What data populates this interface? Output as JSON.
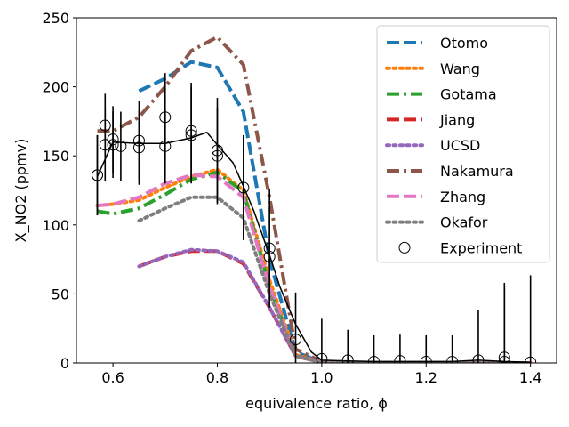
{
  "chart_data": {
    "type": "line",
    "title": "",
    "xlabel": "equivalence ratio, ϕ",
    "ylabel": "X_NO2 (ppmv)",
    "xlim": [
      0.53,
      1.45
    ],
    "ylim": [
      0,
      250
    ],
    "xticks": [
      0.6,
      0.8,
      1.0,
      1.2,
      1.4
    ],
    "xtick_labels": [
      "0.6",
      "0.8",
      "1.0",
      "1.2",
      "1.4"
    ],
    "yticks": [
      0,
      50,
      100,
      150,
      200,
      250
    ],
    "ytick_labels": [
      "0",
      "50",
      "100",
      "150",
      "200",
      "250"
    ],
    "grid": false,
    "legend_position": "top-right",
    "series": [
      {
        "name": "Otomo",
        "color": "#1f77b4",
        "dash": "dashed",
        "x": [
          0.65,
          0.7,
          0.75,
          0.8,
          0.85,
          0.9,
          0.95,
          1.0,
          1.05,
          1.1,
          1.15,
          1.2,
          1.25,
          1.3,
          1.35,
          1.4
        ],
        "y": [
          197,
          206,
          218,
          214,
          182,
          75,
          8,
          0.5,
          0.1,
          0,
          0,
          0,
          0,
          0,
          0,
          0
        ]
      },
      {
        "name": "Wang",
        "color": "#ff7f0e",
        "dash": "dotted",
        "x": [
          0.57,
          0.6,
          0.65,
          0.7,
          0.75,
          0.8,
          0.85,
          0.9,
          0.95,
          1.0,
          1.05,
          1.1,
          1.15,
          1.2,
          1.25,
          1.3,
          1.35,
          1.4
        ],
        "y": [
          114,
          115,
          118,
          127,
          135,
          140,
          125,
          60,
          6,
          0.5,
          0.1,
          0,
          0,
          0,
          0,
          0,
          0,
          0
        ]
      },
      {
        "name": "Gotama",
        "color": "#2ca02c",
        "dash": "dashdot",
        "x": [
          0.57,
          0.6,
          0.65,
          0.7,
          0.75,
          0.8,
          0.85,
          0.9,
          0.95,
          1.0,
          1.05,
          1.1,
          1.15,
          1.2,
          1.25,
          1.3,
          1.35,
          1.4
        ],
        "y": [
          110,
          108,
          112,
          122,
          133,
          138,
          124,
          55,
          5,
          0.5,
          0.1,
          0,
          0,
          0,
          0,
          0,
          0,
          0
        ]
      },
      {
        "name": "Jiang",
        "color": "#d62728",
        "dash": "dashed",
        "x": [
          0.65,
          0.7,
          0.75,
          0.8,
          0.85,
          0.9,
          0.95,
          1.0,
          1.05,
          1.1,
          1.15,
          1.2,
          1.25,
          1.3,
          1.35,
          1.4
        ],
        "y": [
          70,
          77,
          81,
          81,
          72,
          40,
          5,
          0.3,
          0,
          0,
          0,
          0,
          0,
          0,
          0,
          0
        ]
      },
      {
        "name": "UCSD",
        "color": "#9467bd",
        "dash": "dotted",
        "x": [
          0.65,
          0.7,
          0.75,
          0.8,
          0.85,
          0.9,
          0.95,
          1.0,
          1.05,
          1.1,
          1.15,
          1.2,
          1.25,
          1.3,
          1.35,
          1.4
        ],
        "y": [
          70,
          77,
          82,
          81,
          73,
          40,
          5,
          0.3,
          0,
          0,
          0,
          0,
          0,
          0,
          0,
          0
        ]
      },
      {
        "name": "Nakamura",
        "color": "#8c564b",
        "dash": "dashdot",
        "x": [
          0.57,
          0.6,
          0.65,
          0.7,
          0.75,
          0.8,
          0.85,
          0.9,
          0.95,
          1.0,
          1.05,
          1.1,
          1.15,
          1.2,
          1.25,
          1.3,
          1.35,
          1.4
        ],
        "y": [
          168,
          168,
          178,
          200,
          226,
          236,
          216,
          120,
          10,
          1,
          0.2,
          0,
          0,
          0,
          0,
          0,
          0,
          0
        ]
      },
      {
        "name": "Zhang",
        "color": "#e377c2",
        "dash": "dashed",
        "x": [
          0.57,
          0.6,
          0.65,
          0.7,
          0.75,
          0.8,
          0.85,
          0.9,
          0.95,
          1.0,
          1.05,
          1.1,
          1.15,
          1.2,
          1.25,
          1.3,
          1.35,
          1.4
        ],
        "y": [
          114,
          115,
          120,
          130,
          136,
          135,
          120,
          55,
          5,
          0.5,
          0.1,
          0,
          0,
          0,
          0,
          0,
          0,
          0
        ]
      },
      {
        "name": "Okafor",
        "color": "#7f7f7f",
        "dash": "dotted",
        "x": [
          0.65,
          0.7,
          0.75,
          0.8,
          0.85,
          0.9,
          0.95,
          1.0,
          1.05,
          1.1,
          1.15,
          1.2,
          1.25,
          1.3,
          1.35,
          1.4
        ],
        "y": [
          103,
          112,
          120,
          120,
          105,
          50,
          5,
          0.4,
          0.1,
          0,
          0,
          0,
          0,
          0,
          0,
          0
        ]
      }
    ],
    "fit_line": {
      "color": "#000000",
      "x": [
        0.57,
        0.6,
        0.65,
        0.7,
        0.75,
        0.78,
        0.8,
        0.83,
        0.85,
        0.87,
        0.9,
        0.92,
        0.95,
        0.98,
        1.0,
        1.05,
        1.1,
        1.15,
        1.2,
        1.25,
        1.3,
        1.35,
        1.4
      ],
      "y": [
        135,
        160,
        159,
        159,
        163,
        167,
        158,
        145,
        128,
        110,
        78,
        55,
        28,
        8,
        2,
        1.5,
        1,
        1,
        1,
        1,
        2,
        1,
        0.5
      ]
    },
    "experiment": {
      "name": "Experiment",
      "color": "#000000",
      "marker": "open-circle",
      "x": [
        0.57,
        0.57,
        0.585,
        0.585,
        0.6,
        0.6,
        0.615,
        0.65,
        0.65,
        0.7,
        0.7,
        0.75,
        0.75,
        0.8,
        0.8,
        0.85,
        0.9,
        0.9,
        0.95,
        1.0,
        1.05,
        1.1,
        1.15,
        1.2,
        1.25,
        1.3,
        1.35,
        1.35,
        1.4
      ],
      "y": [
        136,
        136,
        172,
        158,
        162,
        158,
        157,
        161,
        156,
        178,
        157,
        168,
        165,
        154,
        150,
        127,
        83,
        77,
        17,
        3,
        2,
        1,
        1.5,
        1,
        1,
        2,
        4,
        1,
        0.5
      ],
      "yerr": [
        29,
        29,
        23,
        26,
        24,
        24,
        25,
        29,
        27,
        32,
        27,
        35,
        35,
        38,
        35,
        38,
        43,
        36,
        34,
        29,
        22,
        19,
        19,
        19,
        19,
        36,
        54,
        54,
        63
      ]
    }
  }
}
